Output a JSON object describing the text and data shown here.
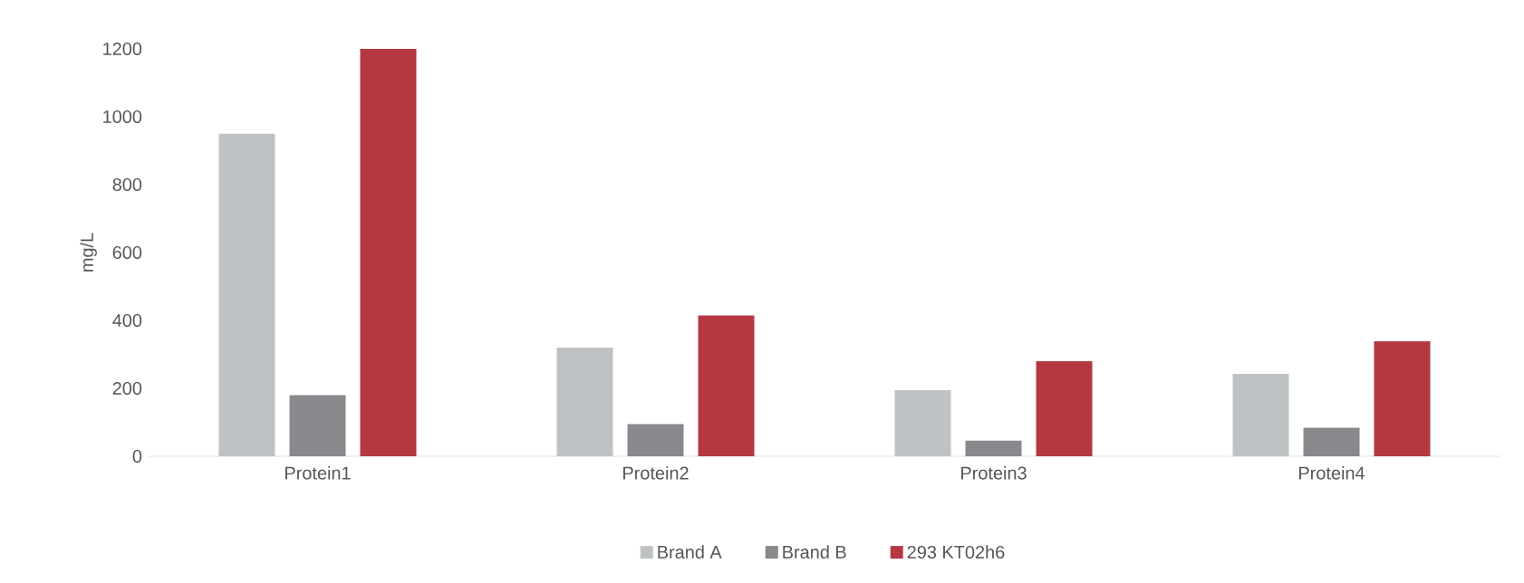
{
  "chart_data": {
    "type": "bar",
    "ylabel": "mg/L",
    "categories": [
      "Protein1",
      "Protein2",
      "Protein3",
      "Protein4"
    ],
    "series": [
      {
        "name": "Brand A",
        "color": "#bfc2c4",
        "values": [
          950,
          320,
          195,
          243
        ]
      },
      {
        "name": "Brand B",
        "color": "#88898d",
        "values": [
          180,
          95,
          46,
          84
        ]
      },
      {
        "name": "293 KT02h6",
        "color": "#b53742",
        "values": [
          1200,
          415,
          280,
          339
        ]
      }
    ],
    "ylim": [
      0,
      1200
    ],
    "yticks": [
      0,
      200,
      400,
      600,
      800,
      1000,
      1200
    ],
    "legend": "bottom"
  }
}
